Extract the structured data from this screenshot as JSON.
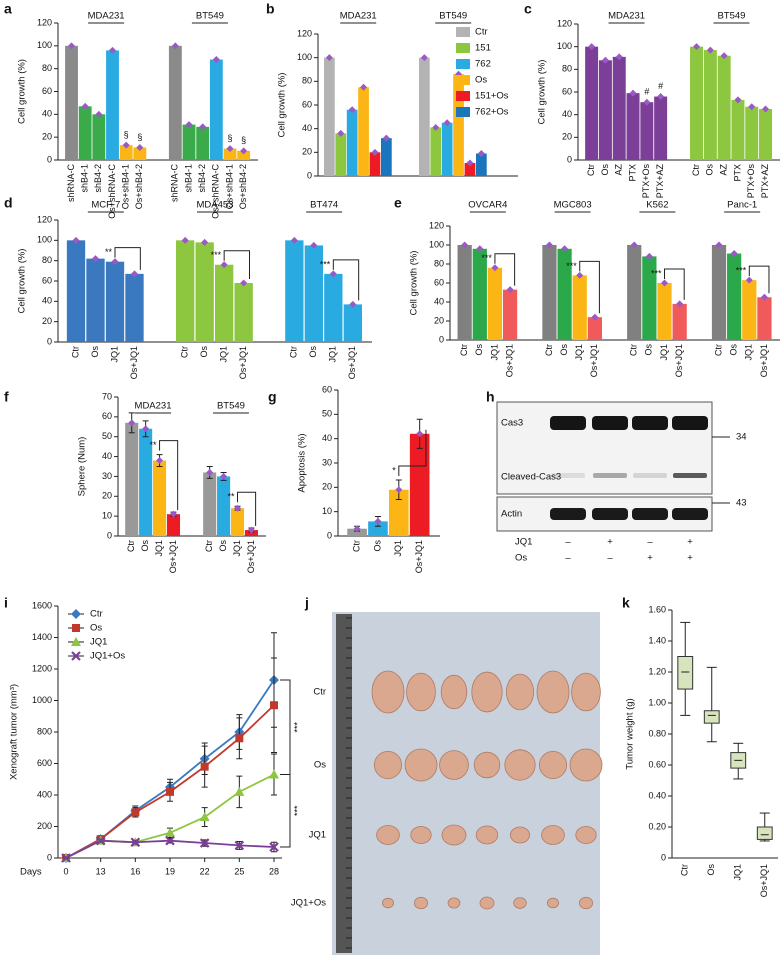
{
  "chart_data": [
    {
      "type": "bar",
      "label": "a",
      "ylabel": "Cell growth (%)",
      "ylim": [
        0,
        120
      ],
      "yticks": [
        0,
        20,
        40,
        60,
        80,
        100,
        120
      ],
      "colors": [
        "#8a8a8a",
        "#3aaa4a",
        "#3aaa4a",
        "#29abe2",
        "#fbb615",
        "#fbb615"
      ],
      "groups": [
        {
          "name": "MDA231",
          "categories": [
            "shRNA-C",
            "shB4-1",
            "shB4-2",
            "Os+shRNA-C",
            "Os+shB4-1",
            "Os+shB4-2"
          ],
          "values": [
            100,
            47,
            40,
            96,
            13,
            11
          ],
          "notes": [
            null,
            null,
            null,
            null,
            "§",
            "§"
          ]
        },
        {
          "name": "BT549",
          "categories": [
            "shRNA-C",
            "shB4-1",
            "shB4-2",
            "Os+shRNA-C",
            "Os+shB4-1",
            "Os+shB4-2"
          ],
          "values": [
            100,
            31,
            29,
            88,
            10,
            8
          ],
          "notes": [
            null,
            null,
            null,
            null,
            "§",
            "§"
          ]
        }
      ]
    },
    {
      "type": "grouped-bar",
      "label": "b",
      "ylabel": "Cell growth (%)",
      "ylim": [
        0,
        120
      ],
      "yticks": [
        0,
        20,
        40,
        60,
        80,
        100,
        120
      ],
      "categories": [
        "MDA231",
        "BT549"
      ],
      "series": [
        {
          "name": "Ctr",
          "color": "#b3b3b3",
          "values": [
            100,
            100
          ]
        },
        {
          "name": "151",
          "color": "#8dc63f",
          "values": [
            36,
            41
          ]
        },
        {
          "name": "762",
          "color": "#29abe2",
          "values": [
            56,
            45
          ]
        },
        {
          "name": "Os",
          "color": "#fbb615",
          "values": [
            75,
            86
          ]
        },
        {
          "name": "151+Os",
          "color": "#ed1c24",
          "values": [
            20,
            11
          ]
        },
        {
          "name": "762+Os",
          "color": "#1b75bc",
          "values": [
            32,
            19
          ]
        }
      ]
    },
    {
      "type": "bar",
      "label": "c",
      "ylabel": "Cell growth (%)",
      "ylim": [
        0,
        120
      ],
      "yticks": [
        0,
        20,
        40,
        60,
        80,
        100,
        120
      ],
      "groups": [
        {
          "name": "MDA231",
          "color": "#7b3f98",
          "categories": [
            "Ctr",
            "Os",
            "AZ",
            "PTX",
            "PTX+Os",
            "PTX+AZ"
          ],
          "values": [
            100,
            88,
            91,
            59,
            51,
            56
          ],
          "notes": [
            null,
            null,
            null,
            null,
            "#",
            "#"
          ]
        },
        {
          "name": "BT549",
          "color": "#8dc63f",
          "categories": [
            "Ctr",
            "Os",
            "AZ",
            "PTX",
            "PTX+Os",
            "PTX+AZ"
          ],
          "values": [
            100,
            97,
            92,
            53,
            47,
            45
          ]
        }
      ]
    },
    {
      "type": "bar",
      "label": "d",
      "ylabel": "Cell growth (%)",
      "ylim": [
        0,
        120
      ],
      "yticks": [
        0,
        20,
        40,
        60,
        80,
        100,
        120
      ],
      "groups": [
        {
          "name": "MCF-7",
          "color": "#3a78c0",
          "categories": [
            "Ctr",
            "Os",
            "JQ1",
            "Os+JQ1"
          ],
          "values": [
            100,
            82,
            79,
            67
          ],
          "bracket": "**"
        },
        {
          "name": "MDA453",
          "color": "#8dc63f",
          "categories": [
            "Ctr",
            "Os",
            "JQ1",
            "Os+JQ1"
          ],
          "values": [
            100,
            98,
            76,
            58
          ],
          "bracket": "***"
        },
        {
          "name": "BT474",
          "color": "#29abe2",
          "categories": [
            "Ctr",
            "Os",
            "JQ1",
            "Os+JQ1"
          ],
          "values": [
            100,
            95,
            67,
            37
          ],
          "bracket": "***"
        }
      ]
    },
    {
      "type": "bar",
      "label": "e",
      "ylabel": "Cell growth (%)",
      "ylim": [
        0,
        120
      ],
      "yticks": [
        0,
        20,
        40,
        60,
        80,
        100,
        120
      ],
      "colors": [
        "#808080",
        "#2ba84a",
        "#fbb615",
        "#f05a5a"
      ],
      "groups": [
        {
          "name": "OVCAR4",
          "categories": [
            "Ctr",
            "Os",
            "JQ1",
            "Os+JQ1"
          ],
          "values": [
            100,
            96,
            76,
            53
          ],
          "bracket": "***"
        },
        {
          "name": "MGC803",
          "categories": [
            "Ctr",
            "Os",
            "JQ1",
            "Os+JQ1"
          ],
          "values": [
            100,
            96,
            68,
            24
          ],
          "bracket": "***"
        },
        {
          "name": "K562",
          "categories": [
            "Ctr",
            "Os",
            "JQ1",
            "Os+JQ1"
          ],
          "values": [
            100,
            88,
            60,
            38
          ],
          "bracket": "***"
        },
        {
          "name": "Panc-1",
          "categories": [
            "Ctr",
            "Os",
            "JQ1",
            "Os+JQ1"
          ],
          "values": [
            100,
            91,
            63,
            45
          ],
          "bracket": "***"
        }
      ]
    },
    {
      "type": "bar",
      "label": "f",
      "ylabel": "Sphere (Num)",
      "ylim": [
        0,
        70
      ],
      "yticks": [
        0,
        10,
        20,
        30,
        40,
        50,
        60,
        70
      ],
      "colors": [
        "#999999",
        "#29abe2",
        "#fbb615",
        "#ed1c24"
      ],
      "groups": [
        {
          "name": "MDA231",
          "categories": [
            "Ctr",
            "Os",
            "JQ1",
            "Os+JQ1"
          ],
          "values": [
            57,
            54,
            38,
            11
          ],
          "errors": [
            5,
            4,
            3,
            1
          ],
          "bracket": "**"
        },
        {
          "name": "BT549",
          "categories": [
            "Ctr",
            "Os",
            "JQ1",
            "Os+JQ1"
          ],
          "values": [
            32,
            30,
            14,
            3
          ],
          "errors": [
            3,
            2,
            1,
            1
          ],
          "bracket": "**"
        }
      ]
    },
    {
      "type": "bar",
      "label": "g",
      "ylabel": "Apoptosis (%)",
      "ylim": [
        0,
        60
      ],
      "yticks": [
        0,
        10,
        20,
        30,
        40,
        50,
        60
      ],
      "colors": [
        "#999999",
        "#29abe2",
        "#fbb615",
        "#ed1c24"
      ],
      "categories": [
        "Ctr",
        "Os",
        "JQ1",
        "Os+JQ1"
      ],
      "values": [
        3,
        6,
        19,
        42
      ],
      "errors": [
        1,
        2,
        4,
        6
      ],
      "bracket": "*"
    },
    {
      "type": "line",
      "label": "i",
      "ylabel": "Xenograft tumor (mm³)",
      "xlabel": "Days",
      "ylim": [
        0,
        1600
      ],
      "yticks": [
        0,
        200,
        400,
        600,
        800,
        1000,
        1200,
        1400,
        1600
      ],
      "categories": [
        "0",
        "13",
        "16",
        "19",
        "22",
        "25",
        "28"
      ],
      "series": [
        {
          "name": "Ctr",
          "color": "#3a78c0",
          "marker": "diamond",
          "values": [
            0,
            120,
            300,
            450,
            630,
            800,
            1130
          ],
          "errors": [
            0,
            15,
            30,
            50,
            100,
            110,
            300
          ]
        },
        {
          "name": "Os",
          "color": "#c0392b",
          "marker": "square",
          "values": [
            0,
            120,
            290,
            420,
            580,
            760,
            970
          ],
          "errors": [
            0,
            15,
            30,
            60,
            130,
            130,
            300
          ]
        },
        {
          "name": "JQ1",
          "color": "#8dc63f",
          "marker": "triangle",
          "values": [
            0,
            110,
            100,
            160,
            260,
            420,
            530
          ],
          "errors": [
            0,
            10,
            15,
            30,
            60,
            100,
            130
          ]
        },
        {
          "name": "JQ1+Os",
          "color": "#7b3f98",
          "marker": "x",
          "values": [
            0,
            110,
            100,
            110,
            95,
            80,
            70
          ],
          "errors": [
            0,
            10,
            10,
            15,
            20,
            25,
            30
          ]
        }
      ],
      "brackets": [
        "***",
        "***"
      ]
    },
    {
      "type": "box",
      "label": "k",
      "ylabel": "Tumor weight (g)",
      "ylim": [
        0,
        1.6
      ],
      "yticks": [
        0,
        {
          "value": 0.2,
          "label": "0.20"
        },
        {
          "value": 0.4,
          "label": "0.40"
        },
        {
          "value": 0.6,
          "label": "0.60"
        },
        {
          "value": 0.8,
          "label": "0.80"
        },
        {
          "value": 1.0,
          "label": "1.00"
        },
        {
          "value": 1.2,
          "label": "1.20"
        },
        {
          "value": 1.4,
          "label": "1.40"
        },
        {
          "value": 1.6,
          "label": "1.60"
        }
      ],
      "categories": [
        "Ctr",
        "Os",
        "JQ1",
        "Os+JQ1"
      ],
      "color": "#d7e4bd",
      "min": [
        0.92,
        0.75,
        0.51,
        0.11
      ],
      "q1": [
        1.09,
        0.87,
        0.58,
        0.12
      ],
      "median": [
        1.2,
        0.92,
        0.63,
        0.15
      ],
      "q3": [
        1.3,
        0.95,
        0.68,
        0.2
      ],
      "max": [
        1.52,
        1.23,
        0.74,
        0.29
      ]
    }
  ],
  "blot": {
    "label": "h",
    "bands": [
      "Cas3",
      "Cleaved-Cas3",
      "Actin"
    ],
    "markers": [
      34,
      43
    ],
    "rows": [
      {
        "name": "JQ1",
        "signs": [
          "–",
          "+",
          "–",
          "+"
        ]
      },
      {
        "name": "Os",
        "signs": [
          "–",
          "–",
          "+",
          "+"
        ]
      }
    ]
  },
  "photo": {
    "label": "j",
    "rows": [
      "Ctr",
      "Os",
      "JQ1",
      "JQ1+Os"
    ]
  }
}
